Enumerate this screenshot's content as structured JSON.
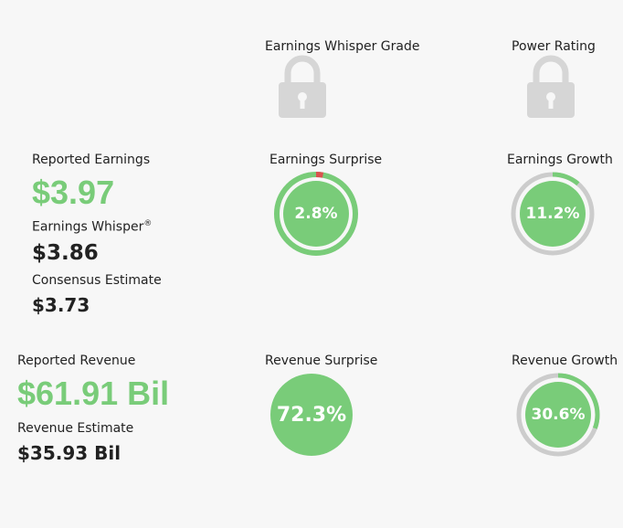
{
  "headers": {
    "earnings_whisper_grade": "Earnings Whisper Grade",
    "power_rating": "Power Rating"
  },
  "earnings": {
    "reported_label": "Reported Earnings",
    "reported_value": "$3.97",
    "whisper_label": "Earnings Whisper",
    "whisper_sup": "®",
    "whisper_value": "$3.86",
    "consensus_label": "Consensus Estimate",
    "consensus_value": "$3.73",
    "surprise_label": "Earnings Surprise",
    "surprise_value": "2.8%",
    "growth_label": "Earnings Growth",
    "growth_value": "11.2%"
  },
  "revenue": {
    "reported_label": "Reported Revenue",
    "reported_value": "$61.91 Bil",
    "estimate_label": "Revenue Estimate",
    "estimate_value": "$35.93 Bil",
    "surprise_label": "Revenue Surprise",
    "surprise_value": "72.3%",
    "growth_label": "Revenue Growth",
    "growth_value": "30.6%"
  },
  "gauges": {
    "earnings_surprise": {
      "fraction": 0.028,
      "ring_color": "#79cc79",
      "marker_color": "#d9534f"
    },
    "earnings_growth": {
      "fraction": 0.112
    },
    "revenue_growth": {
      "fraction": 0.306
    }
  },
  "colors": {
    "accent_green": "#79cc79",
    "ring_gray": "#cccccc",
    "lock_gray": "#d6d6d6",
    "negative_red": "#d9534f"
  },
  "icons": {
    "grade_lock": "lock-icon",
    "power_lock": "lock-icon"
  }
}
